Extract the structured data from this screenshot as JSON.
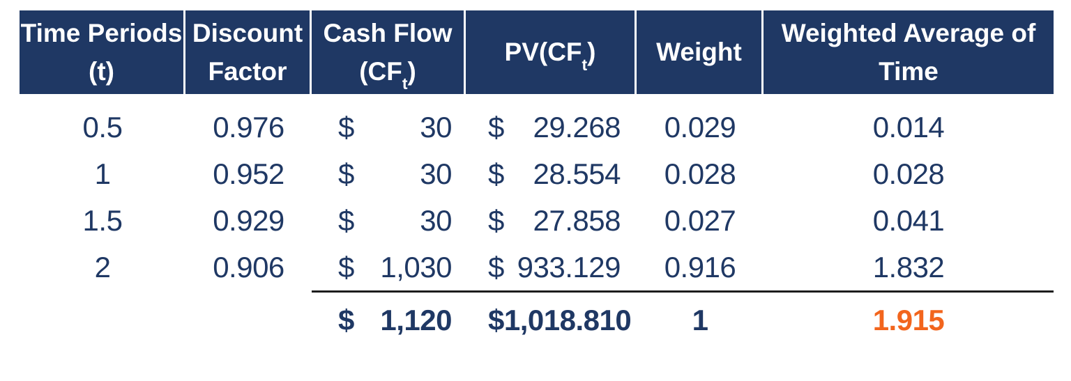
{
  "headers": {
    "time": {
      "line1": "Time Periods",
      "line2": "(t)"
    },
    "discount": {
      "line1": "Discount",
      "line2": "Factor"
    },
    "cashflow": {
      "line1": "Cash Flow",
      "l2pre": "(CF",
      "l2sub": "t",
      "l2post": ")"
    },
    "pv": {
      "pre": "PV(CF",
      "sub": "t",
      "post": ")"
    },
    "weight": {
      "label": "Weight"
    },
    "wat": {
      "line1": "Weighted Average of",
      "line2": "Time"
    }
  },
  "rows": [
    {
      "time": "0.5",
      "discount": "0.976",
      "cf_sym": "$",
      "cf": "30",
      "pv_sym": "$",
      "pv": "29.268",
      "weight": "0.029",
      "wat": "0.014"
    },
    {
      "time": "1",
      "discount": "0.952",
      "cf_sym": "$",
      "cf": "30",
      "pv_sym": "$",
      "pv": "28.554",
      "weight": "0.028",
      "wat": "0.028"
    },
    {
      "time": "1.5",
      "discount": "0.929",
      "cf_sym": "$",
      "cf": "30",
      "pv_sym": "$",
      "pv": "27.858",
      "weight": "0.027",
      "wat": "0.041"
    },
    {
      "time": "2",
      "discount": "0.906",
      "cf_sym": "$",
      "cf": "1,030",
      "pv_sym": "$",
      "pv": "933.129",
      "weight": "0.916",
      "wat": "1.832"
    }
  ],
  "totals": {
    "cf_sym": "$",
    "cf": "1,120",
    "pv_sym": "$",
    "pv": "1,018.810",
    "weight": "1",
    "wat": "1.915"
  },
  "colors": {
    "navy": "#1F3864",
    "orange": "#F2651D",
    "rule": "#1C1C1C",
    "divider": "#FFFFFF",
    "paper": "#FFFFFF"
  }
}
